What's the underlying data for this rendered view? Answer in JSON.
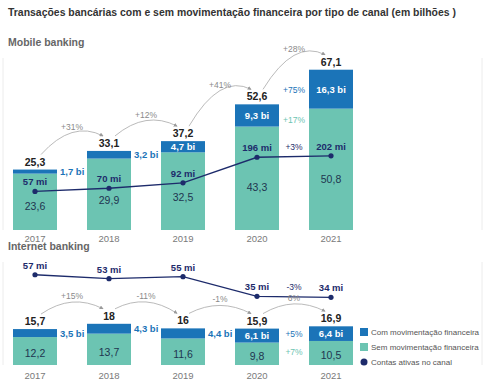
{
  "chart_data": [
    {
      "type": "bar",
      "stacked": true,
      "data_labels": true,
      "tick_labels": "x",
      "title": "Transações bancárias com e sem movimentação financeira por tipo de canal (em bilhões )",
      "subtitle": "Mobile banking",
      "categories": [
        "2017",
        "2018",
        "2019",
        "2020",
        "2021"
      ],
      "ylim": [
        0,
        72
      ],
      "yticks": [],
      "y2lim": [
        -100,
        600
      ],
      "y2ticks": [],
      "series": [
        {
          "name": "Sem movimentação financeira",
          "color": "#6cc4b2",
          "values": [
            23.6,
            29.9,
            32.5,
            43.3,
            50.8
          ],
          "value_labels": [
            "23,6",
            "29,9",
            "32,5",
            "43,3",
            "50,8"
          ],
          "annotation": "+17%"
        },
        {
          "name": "Com movimentação financeira",
          "color": "#1b74b8",
          "values": [
            1.7,
            3.2,
            4.7,
            9.3,
            16.3
          ],
          "value_labels": [
            "1,7 bi",
            "3,2 bi",
            "4,7 bi",
            "9,3 bi",
            "16,3 bi"
          ],
          "annotation": "+75%"
        },
        {
          "name": "Contas ativas no canal",
          "type": "line",
          "axis": "y2",
          "marker": "circle",
          "color": "#1d2b6b",
          "values": [
            57,
            70,
            92,
            196,
            202
          ],
          "value_labels": [
            "57 mi",
            "70 mi",
            "92 mi",
            "196 mi",
            "202 mi"
          ],
          "annotation": "+3%"
        }
      ],
      "totals": [
        25.3,
        33.1,
        37.2,
        52.6,
        67.1
      ],
      "total_labels": [
        "25,3",
        "33,1",
        "37,2",
        "52,6",
        "67,1"
      ],
      "total_changes": [
        "+31%",
        "+12%",
        "+41%",
        "+28%"
      ]
    },
    {
      "type": "bar",
      "stacked": true,
      "data_labels": true,
      "tick_labels": "x",
      "legend": "right",
      "subtitle": "Internet banking",
      "categories": [
        "2017",
        "2018",
        "2019",
        "2020",
        "2021"
      ],
      "ylim": [
        0,
        45
      ],
      "yticks": [],
      "y2lim": [
        -35,
        70
      ],
      "y2ticks": [],
      "series": [
        {
          "name": "Sem movimentação financeira",
          "color": "#6cc4b2",
          "values": [
            12.2,
            13.7,
            11.6,
            9.8,
            10.5
          ],
          "value_labels": [
            "12,2",
            "13,7",
            "11,6",
            "9,8",
            "10,5"
          ],
          "annotation": "+7%"
        },
        {
          "name": "Com movimentação financeira",
          "color": "#1b74b8",
          "values": [
            3.5,
            4.3,
            4.4,
            6.1,
            6.4
          ],
          "value_labels": [
            "3,5 bi",
            "4,3 bi",
            "4,4 bi",
            "6,1 bi",
            "6,4 bi"
          ],
          "annotation": "+5%"
        },
        {
          "name": "Contas ativas no canal",
          "type": "line",
          "axis": "y2",
          "marker": "circle",
          "color": "#1d2b6b",
          "values": [
            57,
            53,
            55,
            35,
            34
          ],
          "value_labels": [
            "57 mi",
            "53 mi",
            "55 mi",
            "35 mi",
            "34 mi"
          ],
          "annotation": "-3%"
        }
      ],
      "totals": [
        15.7,
        18,
        16,
        15.9,
        16.9
      ],
      "total_labels": [
        "15,7",
        "18",
        "16",
        "15,9",
        "16,9"
      ],
      "total_changes": [
        "+15%",
        "-11%",
        "-1%",
        "6%"
      ]
    }
  ]
}
